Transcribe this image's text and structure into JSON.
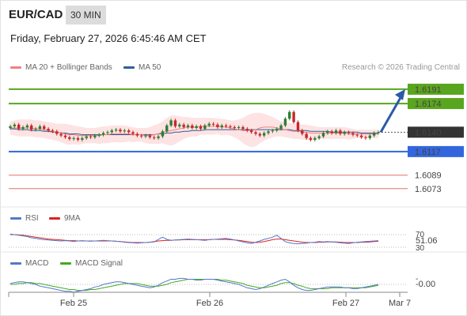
{
  "header": {
    "pair": "EUR/CAD",
    "timeframe": "30 MIN",
    "timestamp": "Friday, February 27, 2026 6:45:46 AM CET"
  },
  "legend": {
    "ma20": {
      "label": "MA 20 + Bollinger Bands",
      "color": "#f08080"
    },
    "ma50": {
      "label": "MA 50",
      "color": "#2f5f98"
    },
    "credit": "Research © 2026 Trading Central"
  },
  "rsi_legend": {
    "rsi": {
      "label": "RSI",
      "color": "#5577cc"
    },
    "ma9": {
      "label": "9MA",
      "color": "#dd2222"
    }
  },
  "macd_legend": {
    "macd": {
      "label": "MACD",
      "color": "#5577cc"
    },
    "signal": {
      "label": "MACD Signal",
      "color": "#44aa22"
    }
  },
  "colors": {
    "up": "#2e7d32",
    "down": "#c62828",
    "band_fill": "#fde3e3",
    "resistance": "#5aa51f",
    "support": "#3366dd",
    "target": "#e07070",
    "arrow": "#2b5aa8",
    "current": "#333333"
  },
  "chart_data": [
    {
      "type": "candlestick",
      "title": "EUR/CAD 30 MIN",
      "ylim": [
        1.6055,
        1.6205
      ],
      "x_ticks": [
        "Feb 25",
        "Feb 26",
        "Feb 27",
        "Mar 7"
      ],
      "current_price": 1.614,
      "levels": [
        {
          "label": "1.6191",
          "value": 1.6191,
          "kind": "resistance"
        },
        {
          "label": "1.6174",
          "value": 1.6174,
          "kind": "resistance"
        },
        {
          "label": "1.6140",
          "value": 1.614,
          "kind": "current"
        },
        {
          "label": "1.6117",
          "value": 1.6117,
          "kind": "support"
        },
        {
          "label": "1.6089",
          "value": 1.6089,
          "kind": "target"
        },
        {
          "label": "1.6073",
          "value": 1.6073,
          "kind": "target"
        }
      ],
      "forecast_arrow": {
        "from": 1.614,
        "to": 1.6191
      },
      "close": [
        1.6147,
        1.6149,
        1.6144,
        1.6146,
        1.6148,
        1.6143,
        1.6144,
        1.6147,
        1.6144,
        1.6142,
        1.6141,
        1.6138,
        1.6136,
        1.6134,
        1.6132,
        1.6133,
        1.6131,
        1.6133,
        1.6135,
        1.6134,
        1.6136,
        1.6137,
        1.6139,
        1.614,
        1.6142,
        1.6143,
        1.6141,
        1.6142,
        1.614,
        1.6138,
        1.6136,
        1.6135,
        1.6136,
        1.6134,
        1.6133,
        1.6135,
        1.6141,
        1.6148,
        1.6154,
        1.6147,
        1.6149,
        1.6146,
        1.6148,
        1.6145,
        1.6147,
        1.6144,
        1.6148,
        1.615,
        1.6149,
        1.6146,
        1.6148,
        1.6147,
        1.6146,
        1.6145,
        1.6146,
        1.6144,
        1.6142,
        1.614,
        1.6138,
        1.6136,
        1.6139,
        1.6141,
        1.6142,
        1.6144,
        1.6148,
        1.6156,
        1.6164,
        1.6152,
        1.6142,
        1.6138,
        1.6133,
        1.6131,
        1.6133,
        1.6135,
        1.6139,
        1.6141,
        1.6139,
        1.6142,
        1.6138,
        1.614,
        1.6139,
        1.6137,
        1.6136,
        1.6134,
        1.6133,
        1.6136,
        1.6139,
        1.614
      ],
      "ma20": [
        1.6145,
        1.6145,
        1.6145,
        1.6145,
        1.6145,
        1.6145,
        1.6144,
        1.6144,
        1.6143,
        1.6142,
        1.6141,
        1.614,
        1.6139,
        1.6138,
        1.6137,
        1.6137,
        1.6136,
        1.6136,
        1.6136,
        1.6136,
        1.6136,
        1.6136,
        1.6137,
        1.6137,
        1.6138,
        1.6138,
        1.6138,
        1.6138,
        1.6138,
        1.6137,
        1.6137,
        1.6137,
        1.6136,
        1.6136,
        1.6137,
        1.6138,
        1.614,
        1.6141,
        1.6142,
        1.6143,
        1.6144,
        1.6145,
        1.6146,
        1.6146,
        1.6146,
        1.6147,
        1.6147,
        1.6147,
        1.6147,
        1.6147,
        1.6146,
        1.6146,
        1.6145,
        1.6144,
        1.6143,
        1.6142,
        1.6142,
        1.6142,
        1.6143,
        1.6145,
        1.6146,
        1.6146,
        1.6146,
        1.6145,
        1.6144,
        1.6143,
        1.6142,
        1.6141,
        1.6141,
        1.614,
        1.614,
        1.6139,
        1.6139,
        1.6139,
        1.6139,
        1.6139,
        1.6139,
        1.6139,
        1.6139,
        1.6139,
        1.6138,
        1.6138,
        1.6138,
        1.6138,
        1.6138,
        1.6138,
        1.6138,
        1.6138
      ],
      "bb_upper": [
        1.6153,
        1.6154,
        1.6155,
        1.6155,
        1.6155,
        1.6155,
        1.6154,
        1.6154,
        1.6153,
        1.6152,
        1.6151,
        1.615,
        1.615,
        1.615,
        1.6149,
        1.6148,
        1.6147,
        1.6146,
        1.6145,
        1.6145,
        1.6145,
        1.6146,
        1.6147,
        1.6147,
        1.6148,
        1.6148,
        1.6148,
        1.6148,
        1.6147,
        1.6146,
        1.6145,
        1.6145,
        1.6145,
        1.6146,
        1.6148,
        1.615,
        1.6153,
        1.6157,
        1.616,
        1.616,
        1.6159,
        1.6158,
        1.6158,
        1.6157,
        1.6157,
        1.6157,
        1.6157,
        1.6157,
        1.6157,
        1.6156,
        1.6156,
        1.6155,
        1.6154,
        1.6154,
        1.6155,
        1.6157,
        1.616,
        1.6162,
        1.6163,
        1.6163,
        1.6162,
        1.616,
        1.6158,
        1.6155,
        1.6153,
        1.6152,
        1.6151,
        1.615,
        1.615,
        1.6149,
        1.6149,
        1.6148,
        1.6147,
        1.6146,
        1.6146,
        1.6146,
        1.6146,
        1.6146,
        1.6146,
        1.6146,
        1.6145,
        1.6144,
        1.6143,
        1.6143,
        1.6143,
        1.6143,
        1.6143,
        1.6143
      ],
      "bb_lower": [
        1.6137,
        1.6136,
        1.6135,
        1.6135,
        1.6135,
        1.6135,
        1.6134,
        1.6134,
        1.6133,
        1.6132,
        1.6131,
        1.613,
        1.6128,
        1.6126,
        1.6125,
        1.6126,
        1.6125,
        1.6126,
        1.6127,
        1.6127,
        1.6127,
        1.6126,
        1.6127,
        1.6127,
        1.6128,
        1.6128,
        1.6128,
        1.6128,
        1.6129,
        1.6128,
        1.6129,
        1.6129,
        1.6127,
        1.6126,
        1.6126,
        1.6126,
        1.6127,
        1.6125,
        1.6124,
        1.6126,
        1.6129,
        1.6132,
        1.6134,
        1.6135,
        1.6135,
        1.6137,
        1.6137,
        1.6137,
        1.6137,
        1.6138,
        1.6136,
        1.6137,
        1.6136,
        1.6134,
        1.6131,
        1.6127,
        1.6124,
        1.6122,
        1.6123,
        1.6127,
        1.613,
        1.6132,
        1.6134,
        1.6135,
        1.6135,
        1.6134,
        1.6133,
        1.6132,
        1.6132,
        1.6131,
        1.6131,
        1.613,
        1.6131,
        1.6132,
        1.6132,
        1.6132,
        1.6132,
        1.6132,
        1.6132,
        1.6132,
        1.6131,
        1.6132,
        1.6133,
        1.6133,
        1.6133,
        1.6133,
        1.6133,
        1.6133
      ],
      "ma50": [
        1.6144,
        1.6144,
        1.6143,
        1.6143,
        1.6143,
        1.6142,
        1.6142,
        1.6142,
        1.6141,
        1.6141,
        1.614,
        1.614,
        1.6139,
        1.6139,
        1.6138,
        1.6138,
        1.6138,
        1.6137,
        1.6137,
        1.6137,
        1.6137,
        1.6137,
        1.6137,
        1.6137,
        1.6137,
        1.6137,
        1.6137,
        1.6137,
        1.6137,
        1.6137,
        1.6137,
        1.6137,
        1.6137,
        1.6137,
        1.6137,
        1.6138,
        1.6138,
        1.6139,
        1.6139,
        1.614,
        1.614,
        1.6141,
        1.6141,
        1.6142,
        1.6142,
        1.6142,
        1.6143,
        1.6143,
        1.6143,
        1.6143,
        1.6143,
        1.6143,
        1.6143,
        1.6143,
        1.6143,
        1.6143,
        1.6143,
        1.6143,
        1.6143,
        1.6143,
        1.6143,
        1.6143,
        1.6143,
        1.6143,
        1.6143,
        1.6143,
        1.6143,
        1.6142,
        1.6142,
        1.6142,
        1.6142,
        1.6141,
        1.6141,
        1.6141,
        1.6141,
        1.6141,
        1.614,
        1.614,
        1.614,
        1.614,
        1.614,
        1.614,
        1.614,
        1.6139,
        1.6139,
        1.6139,
        1.6139,
        1.6139
      ]
    },
    {
      "type": "line",
      "title": "RSI",
      "ylim": [
        30,
        70
      ],
      "y_ticks": [
        70,
        30
      ],
      "current_value": 51.06,
      "series": [
        {
          "name": "RSI",
          "values": [
            72,
            70,
            68,
            66,
            64,
            60,
            58,
            56,
            54,
            53,
            52,
            51,
            50,
            51,
            50,
            48,
            50,
            51,
            50,
            49,
            50,
            51,
            52,
            51,
            50,
            49,
            48,
            46,
            45,
            44,
            43,
            44,
            45,
            46,
            47,
            55,
            62,
            55,
            52,
            53,
            54,
            55,
            56,
            55,
            54,
            53,
            52,
            54,
            55,
            56,
            57,
            58,
            56,
            53,
            50,
            47,
            44,
            42,
            46,
            50,
            55,
            58,
            62,
            68,
            58,
            48,
            44,
            42,
            41,
            42,
            43,
            45,
            46,
            48,
            47,
            48,
            47,
            46,
            44,
            43,
            42,
            44,
            46,
            47,
            48,
            49,
            50,
            51
          ]
        },
        {
          "name": "9MA",
          "values": [
            70,
            70,
            69,
            68,
            66,
            64,
            62,
            60,
            58,
            56,
            55,
            54,
            53,
            52,
            51,
            51,
            50,
            50,
            50,
            50,
            50,
            50,
            50,
            50,
            50,
            49,
            48,
            47,
            46,
            45,
            45,
            45,
            45,
            46,
            48,
            50,
            51,
            52,
            52,
            53,
            53,
            54,
            54,
            54,
            54,
            54,
            54,
            54,
            55,
            55,
            55,
            55,
            54,
            53,
            52,
            50,
            48,
            46,
            45,
            46,
            48,
            51,
            54,
            56,
            56,
            54,
            52,
            50,
            48,
            46,
            45,
            45,
            45,
            46,
            46,
            47,
            47,
            47,
            46,
            45,
            45,
            45,
            45,
            46,
            46,
            47,
            48,
            49
          ]
        }
      ]
    },
    {
      "type": "line",
      "title": "MACD",
      "current_value": -0.0,
      "ylim": [
        -0.0012,
        0.0012
      ],
      "series": [
        {
          "name": "MACD",
          "values": [
            0.0001,
            0.0002,
            0.0003,
            0.0003,
            0.0002,
            0.0001,
            0.0,
            -0.0002,
            -0.0003,
            -0.0004,
            -0.0005,
            -0.0006,
            -0.0007,
            -0.0008,
            -0.0008,
            -0.0009,
            -0.0008,
            -0.0007,
            -0.0006,
            -0.0005,
            -0.0003,
            -0.0002,
            0.0,
            0.0001,
            0.0002,
            0.0003,
            0.0003,
            0.0002,
            0.0001,
            0.0,
            -0.0001,
            -0.0002,
            -0.0003,
            -0.0004,
            -0.0003,
            -0.0001,
            0.0002,
            0.0004,
            0.0006,
            0.0006,
            0.0007,
            0.0007,
            0.0006,
            0.0006,
            0.0005,
            0.0005,
            0.0006,
            0.0006,
            0.0006,
            0.0005,
            0.0004,
            0.0003,
            0.0002,
            0.0001,
            0.0,
            -0.0002,
            -0.0004,
            -0.0005,
            -0.0006,
            -0.0005,
            -0.0003,
            -0.0001,
            0.0001,
            0.0003,
            0.0005,
            0.0006,
            0.0003,
            -0.0001,
            -0.0004,
            -0.0006,
            -0.0007,
            -0.0007,
            -0.0006,
            -0.0005,
            -0.0004,
            -0.0003,
            -0.0003,
            -0.0003,
            -0.0003,
            -0.0004,
            -0.0004,
            -0.0005,
            -0.0005,
            -0.0004,
            -0.0003,
            -0.0002,
            -0.0001,
            0.0
          ]
        },
        {
          "name": "MACD Signal",
          "values": [
            0.0,
            0.0,
            0.0001,
            0.0001,
            0.0002,
            0.0002,
            0.0001,
            0.0001,
            0.0,
            -0.0001,
            -0.0002,
            -0.0003,
            -0.0004,
            -0.0005,
            -0.0006,
            -0.0006,
            -0.0007,
            -0.0007,
            -0.0007,
            -0.0006,
            -0.0006,
            -0.0005,
            -0.0004,
            -0.0003,
            -0.0002,
            -0.0001,
            0.0,
            0.0001,
            0.0001,
            0.0001,
            0.0001,
            0.0,
            -0.0001,
            -0.0002,
            -0.0002,
            -0.0002,
            -0.0001,
            0.0,
            0.0002,
            0.0003,
            0.0004,
            0.0005,
            0.0006,
            0.0006,
            0.0006,
            0.0006,
            0.0006,
            0.0006,
            0.0006,
            0.0006,
            0.0005,
            0.0005,
            0.0004,
            0.0003,
            0.0002,
            0.0001,
            -0.0001,
            -0.0002,
            -0.0003,
            -0.0004,
            -0.0004,
            -0.0003,
            -0.0002,
            -0.0001,
            0.0001,
            0.0002,
            0.0002,
            0.0001,
            -0.0001,
            -0.0002,
            -0.0004,
            -0.0005,
            -0.0005,
            -0.0005,
            -0.0005,
            -0.0005,
            -0.0004,
            -0.0004,
            -0.0004,
            -0.0004,
            -0.0004,
            -0.0004,
            -0.0004,
            -0.0004,
            -0.0004,
            -0.0003,
            -0.0002,
            -0.0001
          ]
        }
      ]
    }
  ]
}
